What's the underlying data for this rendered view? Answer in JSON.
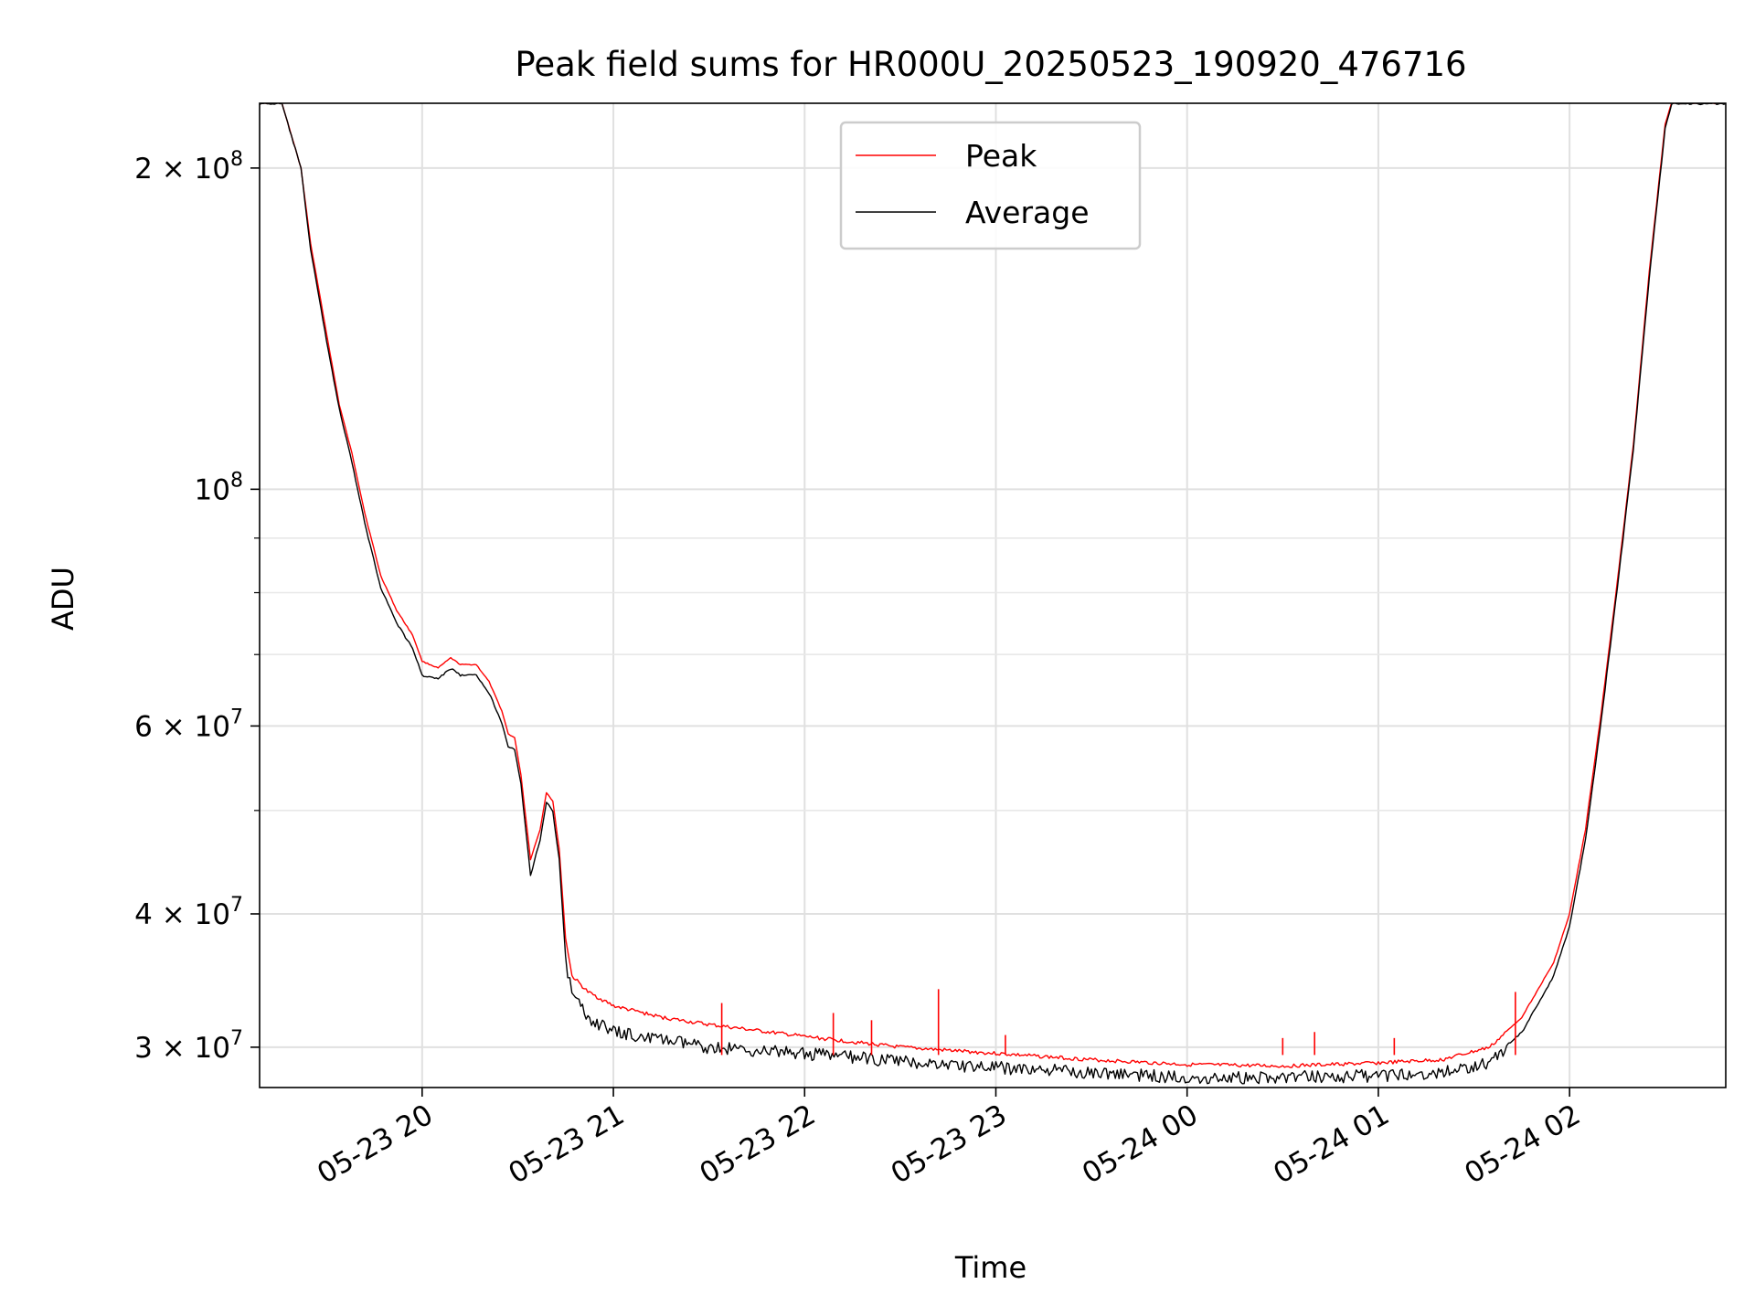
{
  "chart_data": {
    "type": "line",
    "title": "Peak field sums for HR000U_20250523_190920_476716",
    "xlabel": "Time",
    "ylabel": "ADU",
    "y_scale": "log",
    "grid": true,
    "legend_position": "top-center",
    "xlim": [
      "2025-05-23 19:09",
      "2025-05-24 02:49"
    ],
    "ylim": [
      27500000,
      230000000
    ],
    "x_ticks": [
      {
        "t": "2025-05-23 20:00",
        "label": "05-23 20"
      },
      {
        "t": "2025-05-23 21:00",
        "label": "05-23 21"
      },
      {
        "t": "2025-05-23 22:00",
        "label": "05-23 22"
      },
      {
        "t": "2025-05-23 23:00",
        "label": "05-23 23"
      },
      {
        "t": "2025-05-24 00:00",
        "label": "05-24 00"
      },
      {
        "t": "2025-05-24 01:00",
        "label": "05-24 01"
      },
      {
        "t": "2025-05-24 02:00",
        "label": "05-24 02"
      }
    ],
    "y_major_ticks": [
      {
        "value": 30000000,
        "base": "3",
        "exp": "7"
      },
      {
        "value": 40000000,
        "base": "4",
        "exp": "7"
      },
      {
        "value": 60000000,
        "base": "6",
        "exp": "7"
      },
      {
        "value": 100000000,
        "base": "",
        "exp": "8"
      },
      {
        "value": 200000000,
        "base": "2",
        "exp": "8"
      }
    ],
    "y_minor_ticks": [
      50000000,
      70000000,
      80000000,
      90000000
    ],
    "series": [
      {
        "name": "Peak",
        "color": "#ff0000",
        "points": [
          [
            "2025-05-23 19:09",
            230000000
          ],
          [
            "2025-05-23 19:16",
            230000000
          ],
          [
            "2025-05-23 19:22",
            200000000
          ],
          [
            "2025-05-23 19:25",
            170000000
          ],
          [
            "2025-05-23 19:30",
            140000000
          ],
          [
            "2025-05-23 19:34",
            120000000
          ],
          [
            "2025-05-23 19:38",
            108000000
          ],
          [
            "2025-05-23 19:42",
            95000000
          ],
          [
            "2025-05-23 19:47",
            83000000
          ],
          [
            "2025-05-23 19:52",
            77000000
          ],
          [
            "2025-05-23 19:57",
            73000000
          ],
          [
            "2025-05-23 20:00",
            69000000
          ],
          [
            "2025-05-23 20:05",
            68000000
          ],
          [
            "2025-05-23 20:09",
            69500000
          ],
          [
            "2025-05-23 20:12",
            68500000
          ],
          [
            "2025-05-23 20:17",
            68500000
          ],
          [
            "2025-05-23 20:21",
            66000000
          ],
          [
            "2025-05-23 20:25",
            62000000
          ],
          [
            "2025-05-23 20:27",
            59000000
          ],
          [
            "2025-05-23 20:29",
            58500000
          ],
          [
            "2025-05-23 20:31",
            54000000
          ],
          [
            "2025-05-23 20:34",
            45000000
          ],
          [
            "2025-05-23 20:37",
            48000000
          ],
          [
            "2025-05-23 20:39",
            52000000
          ],
          [
            "2025-05-23 20:41",
            51000000
          ],
          [
            "2025-05-23 20:43",
            46000000
          ],
          [
            "2025-05-23 20:45",
            38000000
          ],
          [
            "2025-05-23 20:47",
            35000000
          ],
          [
            "2025-05-23 20:52",
            33800000
          ],
          [
            "2025-05-23 21:00",
            32800000
          ],
          [
            "2025-05-23 21:15",
            32000000
          ],
          [
            "2025-05-23 21:30",
            31500000
          ],
          [
            "2025-05-23 22:00",
            30700000
          ],
          [
            "2025-05-23 22:30",
            30000000
          ],
          [
            "2025-05-23 23:00",
            29600000
          ],
          [
            "2025-05-23 23:30",
            29200000
          ],
          [
            "2025-05-24 00:00",
            28900000
          ],
          [
            "2025-05-24 00:30",
            28800000
          ],
          [
            "2025-05-24 01:00",
            29000000
          ],
          [
            "2025-05-24 01:20",
            29200000
          ],
          [
            "2025-05-24 01:35",
            30000000
          ],
          [
            "2025-05-24 01:45",
            32000000
          ],
          [
            "2025-05-24 01:55",
            36000000
          ],
          [
            "2025-05-24 02:00",
            40000000
          ],
          [
            "2025-05-24 02:05",
            48000000
          ],
          [
            "2025-05-24 02:10",
            62000000
          ],
          [
            "2025-05-24 02:15",
            82000000
          ],
          [
            "2025-05-24 02:20",
            110000000
          ],
          [
            "2025-05-24 02:25",
            160000000
          ],
          [
            "2025-05-24 02:30",
            220000000
          ],
          [
            "2025-05-24 02:32",
            230000000
          ],
          [
            "2025-05-24 02:49",
            230000000
          ]
        ],
        "spikes": [
          [
            "2025-05-23 21:34",
            33000000
          ],
          [
            "2025-05-23 22:09",
            32300000
          ],
          [
            "2025-05-23 22:21",
            31800000
          ],
          [
            "2025-05-23 22:42",
            34000000
          ],
          [
            "2025-05-23 23:03",
            30800000
          ],
          [
            "2025-05-24 00:30",
            30600000
          ],
          [
            "2025-05-24 00:40",
            31000000
          ],
          [
            "2025-05-24 01:05",
            30600000
          ],
          [
            "2025-05-24 01:43",
            33800000
          ]
        ]
      },
      {
        "name": "Average",
        "color": "#000000",
        "points": [
          [
            "2025-05-23 19:09",
            230000000
          ],
          [
            "2025-05-23 19:16",
            230000000
          ],
          [
            "2025-05-23 19:22",
            200000000
          ],
          [
            "2025-05-23 19:25",
            168000000
          ],
          [
            "2025-05-23 19:30",
            138000000
          ],
          [
            "2025-05-23 19:34",
            119000000
          ],
          [
            "2025-05-23 19:38",
            106000000
          ],
          [
            "2025-05-23 19:42",
            93000000
          ],
          [
            "2025-05-23 19:47",
            81000000
          ],
          [
            "2025-05-23 19:52",
            75000000
          ],
          [
            "2025-05-23 19:57",
            71000000
          ],
          [
            "2025-05-23 20:00",
            67000000
          ],
          [
            "2025-05-23 20:05",
            66500000
          ],
          [
            "2025-05-23 20:09",
            68000000
          ],
          [
            "2025-05-23 20:12",
            67000000
          ],
          [
            "2025-05-23 20:17",
            67000000
          ],
          [
            "2025-05-23 20:21",
            64500000
          ],
          [
            "2025-05-23 20:25",
            60500000
          ],
          [
            "2025-05-23 20:27",
            57500000
          ],
          [
            "2025-05-23 20:29",
            57000000
          ],
          [
            "2025-05-23 20:31",
            53000000
          ],
          [
            "2025-05-23 20:34",
            43500000
          ],
          [
            "2025-05-23 20:37",
            47000000
          ],
          [
            "2025-05-23 20:39",
            51000000
          ],
          [
            "2025-05-23 20:41",
            50000000
          ],
          [
            "2025-05-23 20:43",
            45000000
          ],
          [
            "2025-05-23 20:45",
            36500000
          ],
          [
            "2025-05-23 20:47",
            33800000
          ],
          [
            "2025-05-23 20:52",
            32200000
          ],
          [
            "2025-05-23 21:00",
            31200000
          ],
          [
            "2025-05-23 21:15",
            30700000
          ],
          [
            "2025-05-23 21:30",
            30200000
          ],
          [
            "2025-05-23 22:00",
            29800000
          ],
          [
            "2025-05-23 22:30",
            29300000
          ],
          [
            "2025-05-23 23:00",
            28900000
          ],
          [
            "2025-05-23 23:30",
            28600000
          ],
          [
            "2025-05-24 00:00",
            28300000
          ],
          [
            "2025-05-24 00:30",
            28300000
          ],
          [
            "2025-05-24 01:00",
            28400000
          ],
          [
            "2025-05-24 01:20",
            28600000
          ],
          [
            "2025-05-24 01:35",
            29200000
          ],
          [
            "2025-05-24 01:45",
            31000000
          ],
          [
            "2025-05-24 01:55",
            35000000
          ],
          [
            "2025-05-24 02:00",
            39000000
          ],
          [
            "2025-05-24 02:05",
            47000000
          ],
          [
            "2025-05-24 02:10",
            61000000
          ],
          [
            "2025-05-24 02:15",
            81000000
          ],
          [
            "2025-05-24 02:20",
            109000000
          ],
          [
            "2025-05-24 02:25",
            158000000
          ],
          [
            "2025-05-24 02:30",
            218000000
          ],
          [
            "2025-05-24 02:32",
            230000000
          ],
          [
            "2025-05-24 02:49",
            230000000
          ]
        ]
      }
    ]
  }
}
